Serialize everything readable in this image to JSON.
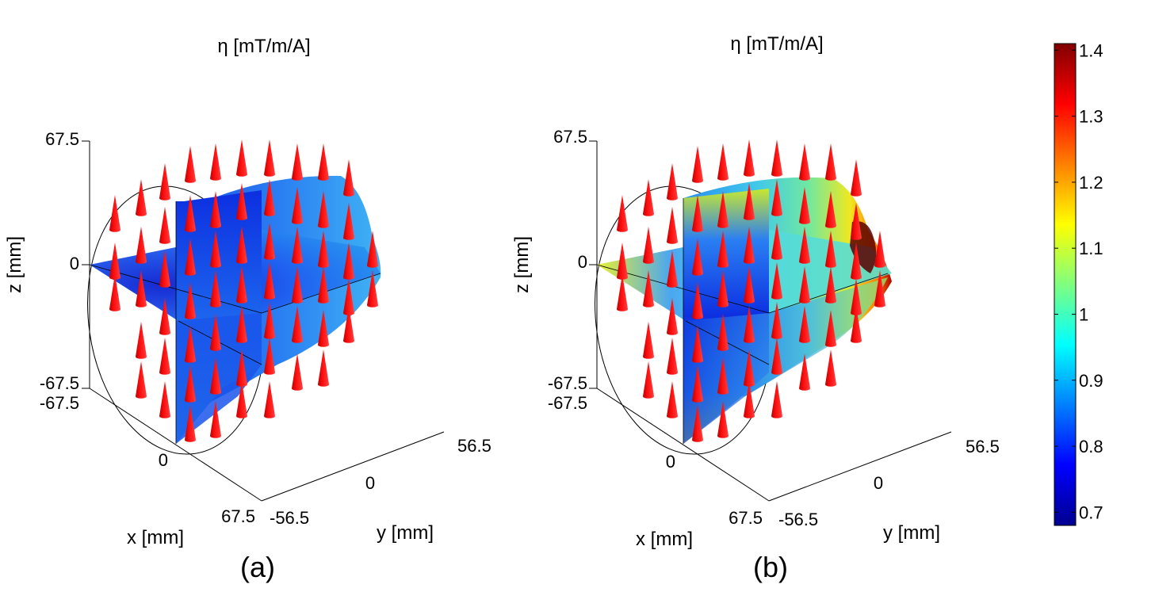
{
  "chart_data": [
    {
      "type": "3d-vector-surface",
      "panel_label": "(a)",
      "title": "η [mT/m/A]",
      "xlabel": "x [mm]",
      "ylabel": "y [mm]",
      "zlabel": "z [mm]",
      "x_ticks": [
        "-67.5",
        "0",
        "67.5"
      ],
      "y_ticks": [
        "-56.5",
        "0",
        "56.5"
      ],
      "z_ticks": [
        "-67.5",
        "0",
        "67.5"
      ],
      "xlim": [
        -67.5,
        67.5
      ],
      "ylim": [
        -56.5,
        56.5
      ],
      "zlim": [
        -67.5,
        67.5
      ],
      "eta_range_shown": [
        0.72,
        0.95
      ],
      "field_direction": "+z",
      "vector_color": "#ff0000"
    },
    {
      "type": "3d-vector-surface",
      "panel_label": "(b)",
      "title": "η [mT/m/A]",
      "xlabel": "x [mm]",
      "ylabel": "y [mm]",
      "zlabel": "z [mm]",
      "x_ticks": [
        "-67.5",
        "0",
        "67.5"
      ],
      "y_ticks": [
        "-56.5",
        "0",
        "56.5"
      ],
      "z_ticks": [
        "-67.5",
        "0",
        "67.5"
      ],
      "xlim": [
        -67.5,
        67.5
      ],
      "ylim": [
        -56.5,
        56.5
      ],
      "zlim": [
        -67.5,
        67.5
      ],
      "eta_range_shown": [
        0.72,
        1.4
      ],
      "field_direction": "+z",
      "vector_color": "#ff0000"
    }
  ],
  "colorbar": {
    "min": 0.68,
    "max": 1.41,
    "ticks": [
      0.7,
      0.8,
      0.9,
      1,
      1.1,
      1.2,
      1.3,
      1.4
    ],
    "tick_labels": [
      "0.7",
      "0.8",
      "0.9",
      "1",
      "1.1",
      "1.2",
      "1.3",
      "1.4"
    ],
    "colormap": "jet"
  }
}
